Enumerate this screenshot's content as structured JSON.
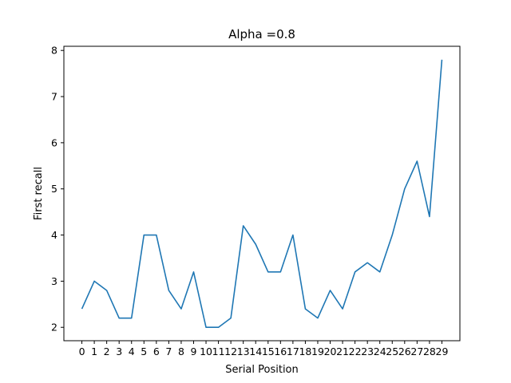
{
  "chart_data": {
    "type": "line",
    "title": "Alpha =0.8",
    "xlabel": "Serial Position",
    "ylabel": "First recall",
    "x": [
      0,
      1,
      2,
      3,
      4,
      5,
      6,
      7,
      8,
      9,
      10,
      11,
      12,
      13,
      14,
      15,
      16,
      17,
      18,
      19,
      20,
      21,
      22,
      23,
      24,
      25,
      26,
      27,
      28,
      29
    ],
    "x_ticklabels": [
      "0",
      "1",
      "2",
      "3",
      "4",
      "5",
      "6",
      "7",
      "8",
      "9",
      "10",
      "11",
      "12",
      "13",
      "14",
      "15",
      "16",
      "17",
      "18",
      "19",
      "20",
      "21",
      "22",
      "23",
      "24",
      "25",
      "26",
      "27",
      "28",
      "29"
    ],
    "y_ticks": [
      2,
      3,
      4,
      5,
      6,
      7,
      8
    ],
    "y_ticklabels": [
      "2",
      "3",
      "4",
      "5",
      "6",
      "7",
      "8"
    ],
    "xlim": [
      -1.45,
      30.45
    ],
    "ylim": [
      1.71,
      8.09
    ],
    "grid": false,
    "series": [
      {
        "color": "#1f77b4",
        "values": [
          2.4,
          3.0,
          2.8,
          2.2,
          2.2,
          4.0,
          4.0,
          2.8,
          2.4,
          3.2,
          2.0,
          2.0,
          2.2,
          4.2,
          3.8,
          3.2,
          3.2,
          4.0,
          2.4,
          2.2,
          2.8,
          2.4,
          3.2,
          3.4,
          3.2,
          4.0,
          5.0,
          5.6,
          4.4,
          7.8
        ]
      }
    ]
  }
}
